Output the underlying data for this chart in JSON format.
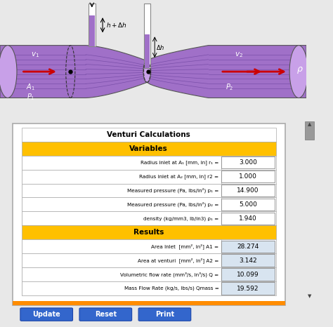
{
  "title": "Venturi Calculations",
  "section_variables": "Variables",
  "section_results": "Results",
  "variables": [
    {
      "label": "Radius inlet at A₁ [mm, in] r₁ =",
      "value": "3.000"
    },
    {
      "label": "Radius inlet at A₂ [mm, in] r2 =",
      "value": "1.000"
    },
    {
      "label": "Measured pressure (Pa, lbs/in²) p₁ =",
      "value": "14.900"
    },
    {
      "label": "Measured pressure (Pa, lbs/in²) p₂ =",
      "value": "5.000"
    },
    {
      "label": "density (kg/mm3, lb/in3) ρ₁ =",
      "value": "1.940"
    }
  ],
  "results": [
    {
      "label": "Area Inlet  [mm², in²] A1 =",
      "value": "28.274"
    },
    {
      "label": "Area at venturi  [mm², in²] A2 =",
      "value": "3.142"
    },
    {
      "label": "Volumetric flow rate (mm³/s, in³/s) Q =",
      "value": "10.099"
    },
    {
      "label": "Mass Flow Rate (kg/s, lbs/s) Qmass =",
      "value": "19.592"
    }
  ],
  "header_color": "#FFC000",
  "pipe_color": "#A070C8",
  "pipe_dark": "#7A4FAA",
  "pipe_light": "#C8A0E8",
  "arrow_color": "#CC0000",
  "outer_bg": "#E8E8E8",
  "diag_bg": "#FFFFFF",
  "panel_bg": "#FFFFFF",
  "panel_border": "#AAAAAA",
  "scrollbar_bg": "#CCCCCC",
  "scrollbar_thumb": "#999999",
  "button_color": "#3366CC",
  "button_border": "#1A44AA",
  "orange_line": "#FF8C00",
  "button_text": [
    "Update",
    "Reset",
    "Print"
  ],
  "row_alt_bg": "#D8E4F0",
  "value_border": "#888888"
}
